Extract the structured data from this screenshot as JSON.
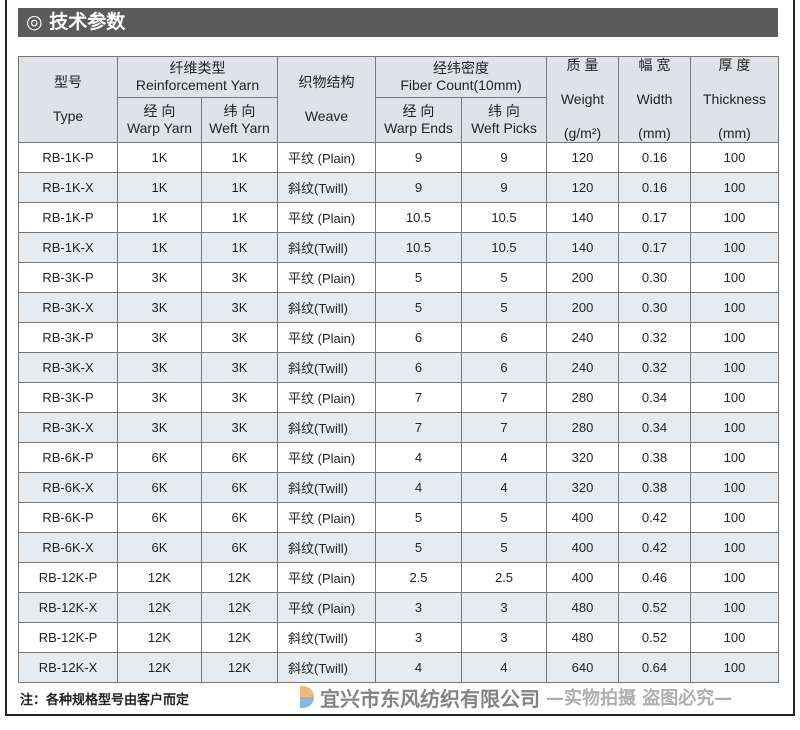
{
  "title": "◎ 技术参数",
  "header": {
    "type_cn": "型号",
    "type_en": "Type",
    "yarn_cn": "纤维类型",
    "yarn_en": "Reinforcement  Yarn",
    "warp_yarn_cn": "经  向",
    "warp_yarn_en": "Warp Yarn",
    "weft_yarn_cn": "纬 向",
    "weft_yarn_en": "Weft Yarn",
    "weave_cn": "织物结构",
    "weave_en": "Weave",
    "count_cn": "经纬密度",
    "count_en": "Fiber Count(10mm)",
    "warp_ends_cn": "经  向",
    "warp_ends_en": "Warp Ends",
    "weft_picks_cn": "纬 向",
    "weft_picks_en": "Weft Picks",
    "weight_cn": "质 量",
    "weight_en": "Weight",
    "weight_unit": "(g/m²)",
    "width_cn": "幅 宽",
    "width_en": "Width",
    "width_unit": "(mm)",
    "thick_cn": "厚 度",
    "thick_en": "Thickness",
    "thick_unit": "(mm)"
  },
  "rows": [
    [
      "RB-1K-P",
      "1K",
      "1K",
      "平纹 (Plain)",
      "9",
      "9",
      "120",
      "0.16",
      "100"
    ],
    [
      "RB-1K-X",
      "1K",
      "1K",
      "斜纹(Twill)",
      "9",
      "9",
      "120",
      "0.16",
      "100"
    ],
    [
      "RB-1K-P",
      "1K",
      "1K",
      "平纹 (Plain)",
      "10.5",
      "10.5",
      "140",
      "0.17",
      "100"
    ],
    [
      "RB-1K-X",
      "1K",
      "1K",
      "斜纹(Twill)",
      "10.5",
      "10.5",
      "140",
      "0.17",
      "100"
    ],
    [
      "RB-3K-P",
      "3K",
      "3K",
      "平纹 (Plain)",
      "5",
      "5",
      "200",
      "0.30",
      "100"
    ],
    [
      "RB-3K-X",
      "3K",
      "3K",
      "斜纹(Twill)",
      "5",
      "5",
      "200",
      "0.30",
      "100"
    ],
    [
      "RB-3K-P",
      "3K",
      "3K",
      "平纹 (Plain)",
      "6",
      "6",
      "240",
      "0.32",
      "100"
    ],
    [
      "RB-3K-X",
      "3K",
      "3K",
      "斜纹(Twill)",
      "6",
      "6",
      "240",
      "0.32",
      "100"
    ],
    [
      "RB-3K-P",
      "3K",
      "3K",
      "平纹 (Plain)",
      "7",
      "7",
      "280",
      "0.34",
      "100"
    ],
    [
      "RB-3K-X",
      "3K",
      "3K",
      "斜纹(Twill)",
      "7",
      "7",
      "280",
      "0.34",
      "100"
    ],
    [
      "RB-6K-P",
      "6K",
      "6K",
      "平纹 (Plain)",
      "4",
      "4",
      "320",
      "0.38",
      "100"
    ],
    [
      "RB-6K-X",
      "6K",
      "6K",
      "斜纹(Twill)",
      "4",
      "4",
      "320",
      "0.38",
      "100"
    ],
    [
      "RB-6K-P",
      "6K",
      "6K",
      "平纹 (Plain)",
      "5",
      "5",
      "400",
      "0.42",
      "100"
    ],
    [
      "RB-6K-X",
      "6K",
      "6K",
      "斜纹(Twill)",
      "5",
      "5",
      "400",
      "0.42",
      "100"
    ],
    [
      "RB-12K-P",
      "12K",
      "12K",
      "平纹 (Plain)",
      "2.5",
      "2.5",
      "400",
      "0.46",
      "100"
    ],
    [
      "RB-12K-X",
      "12K",
      "12K",
      "平纹 (Plain)",
      "3",
      "3",
      "480",
      "0.52",
      "100"
    ],
    [
      "RB-12K-P",
      "12K",
      "12K",
      "斜纹(Twill)",
      "3",
      "3",
      "480",
      "0.52",
      "100"
    ],
    [
      "RB-12K-X",
      "12K",
      "12K",
      "斜纹(Twill)",
      "4",
      "4",
      "640",
      "0.64",
      "100"
    ]
  ],
  "note": "注：各种规格型号由客户而定",
  "watermark": {
    "company": "宜兴市东风纺织有限公司",
    "warning": "—实物拍摄 盗图必究—"
  }
}
